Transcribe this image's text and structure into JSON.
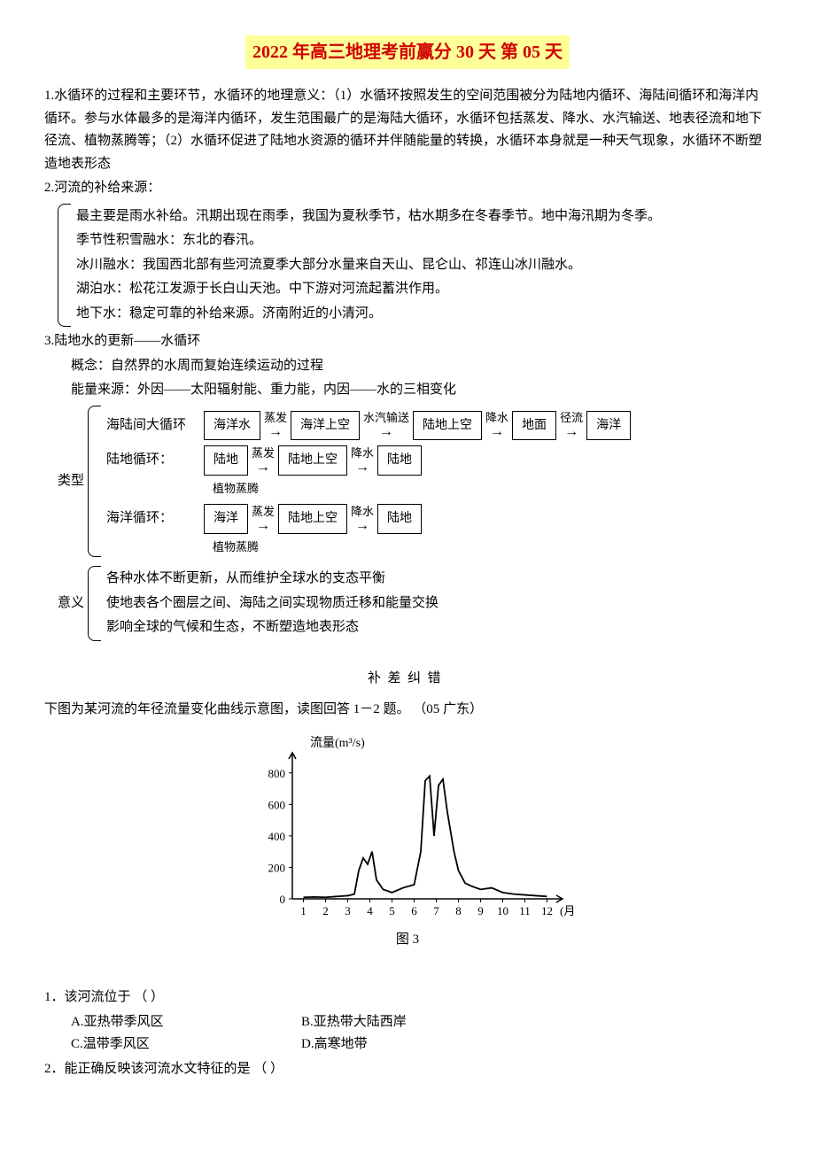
{
  "title": "2022 年高三地理考前赢分 30 天 第 05 天",
  "section1": {
    "num": "1.",
    "text": "水循环的过程和主要环节，水循环的地理意义：（1）水循环按照发生的空间范围被分为陆地内循环、海陆间循环和海洋内循环。参与水体最多的是海洋内循环，发生范围最广的是海陆大循环，水循环包括蒸发、降水、水汽输送、地表径流和地下径流、植物蒸腾等；（2）水循环促进了陆地水资源的循环并伴随能量的转换，水循环本身就是一种天气现象，水循环不断塑造地表形态"
  },
  "section2": {
    "num": "2.",
    "heading": "河流的补给来源：",
    "lines": [
      "最主要是雨水补给。汛期出现在雨季，我国为夏秋季节，枯水期多在冬春季节。地中海汛期为冬季。",
      "季节性积雪融水：东北的春汛。",
      "冰川融水：我国西北部有些河流夏季大部分水量来自天山、昆仑山、祁连山冰川融水。",
      "湖泊水：松花江发源于长白山天池。中下游对河流起蓄洪作用。",
      "地下水：稳定可靠的补给来源。济南附近的小清河。"
    ]
  },
  "section3": {
    "num": "3.",
    "heading": "陆地水的更新——水循环",
    "concept": "概念：自然界的水周而复始连续运动的过程",
    "energy": "能量来源：外因——太阳辐射能、重力能，内因——水的三相变化",
    "type_label": "类型",
    "flows": [
      {
        "label": "海陆间大循环",
        "nodes": [
          "海洋水",
          "海洋上空",
          "陆地上空",
          "地面",
          "海洋"
        ],
        "edges": [
          "蒸发",
          "水汽输送",
          "降水",
          "径流"
        ]
      },
      {
        "label": "陆地循环：",
        "nodes": [
          "陆地",
          "陆地上空",
          "陆地"
        ],
        "edges": [
          "蒸发",
          "降水"
        ],
        "bottom": "植物蒸腾"
      },
      {
        "label": "海洋循环：",
        "nodes": [
          "海洋",
          "陆地上空",
          "陆地"
        ],
        "edges": [
          "蒸发",
          "降水"
        ],
        "bottom": "植物蒸腾"
      }
    ],
    "meaning_label": "意义",
    "meanings": [
      "各种水体不断更新，从而维护全球水的支态平衡",
      "使地表各个圈层之间、海陆之间实现物质迁移和能量交换",
      "影响全球的气候和生态，不断塑造地表形态"
    ]
  },
  "quiz": {
    "heading": "补差纠错",
    "intro": "下图为某河流的年径流量变化曲线示意图，读图回答 1－2 题。  （05  广东）",
    "chart": {
      "ylabel": "流量(m³/s)",
      "xlabel_suffix": "(月)",
      "caption": "图 3",
      "y_ticks": [
        0,
        200,
        400,
        600,
        800
      ],
      "x_ticks": [
        1,
        2,
        3,
        4,
        5,
        6,
        7,
        8,
        9,
        10,
        11,
        12
      ],
      "ylim": [
        0,
        900
      ],
      "xlim": [
        0.5,
        12.5
      ],
      "line_color": "#000000",
      "axis_color": "#000000",
      "bg": "#ffffff",
      "points": [
        [
          1,
          10
        ],
        [
          1.5,
          12
        ],
        [
          2,
          10
        ],
        [
          2.5,
          15
        ],
        [
          3,
          20
        ],
        [
          3.3,
          30
        ],
        [
          3.5,
          180
        ],
        [
          3.7,
          260
        ],
        [
          3.9,
          220
        ],
        [
          4.1,
          300
        ],
        [
          4.3,
          120
        ],
        [
          4.6,
          60
        ],
        [
          5,
          40
        ],
        [
          5.5,
          70
        ],
        [
          6,
          90
        ],
        [
          6.3,
          300
        ],
        [
          6.5,
          750
        ],
        [
          6.7,
          780
        ],
        [
          6.9,
          400
        ],
        [
          7.1,
          720
        ],
        [
          7.3,
          760
        ],
        [
          7.5,
          550
        ],
        [
          7.8,
          300
        ],
        [
          8,
          180
        ],
        [
          8.3,
          100
        ],
        [
          8.6,
          80
        ],
        [
          9,
          60
        ],
        [
          9.5,
          70
        ],
        [
          10,
          40
        ],
        [
          10.5,
          30
        ],
        [
          11,
          25
        ],
        [
          11.5,
          20
        ],
        [
          12,
          15
        ]
      ]
    },
    "q1": {
      "text": "1．该河流位于    （    ）",
      "a": "A.亚热带季风区",
      "b": "B.亚热带大陆西岸",
      "c": "C.温带季风区",
      "d": "D.高寒地带"
    },
    "q2": {
      "text": "2．能正确反映该河流水文特征的是 （    ）"
    }
  }
}
